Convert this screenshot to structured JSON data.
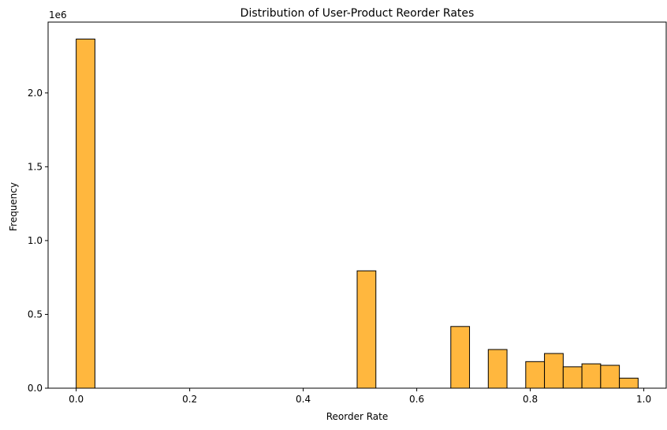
{
  "chart_data": {
    "type": "bar",
    "title": "Distribution of User-Product Reorder Rates",
    "xlabel": "Reorder Rate",
    "ylabel": "Frequency",
    "y_offset_label": "1e6",
    "xlim": [
      -0.0495,
      1.0395
    ],
    "ylim": [
      0,
      2.48
    ],
    "x_ticks": [
      0.0,
      0.2,
      0.4,
      0.6,
      0.8,
      1.0
    ],
    "x_tick_labels": [
      "0.0",
      "0.2",
      "0.4",
      "0.6",
      "0.8",
      "1.0"
    ],
    "y_ticks": [
      0.0,
      0.5,
      1.0,
      1.5,
      2.0
    ],
    "y_tick_labels": [
      "0.0",
      "0.5",
      "1.0",
      "1.5",
      "2.0"
    ],
    "bar_color": "#FFB73E",
    "edge_color": "#000000",
    "bins": [
      {
        "start": 0.0,
        "end": 0.033,
        "value": 2.365
      },
      {
        "start": 0.495,
        "end": 0.528,
        "value": 0.795
      },
      {
        "start": 0.66,
        "end": 0.693,
        "value": 0.418
      },
      {
        "start": 0.726,
        "end": 0.759,
        "value": 0.262
      },
      {
        "start": 0.792,
        "end": 0.825,
        "value": 0.18
      },
      {
        "start": 0.825,
        "end": 0.858,
        "value": 0.235
      },
      {
        "start": 0.858,
        "end": 0.891,
        "value": 0.145
      },
      {
        "start": 0.891,
        "end": 0.924,
        "value": 0.165
      },
      {
        "start": 0.924,
        "end": 0.957,
        "value": 0.155
      },
      {
        "start": 0.957,
        "end": 0.99,
        "value": 0.068
      }
    ]
  }
}
